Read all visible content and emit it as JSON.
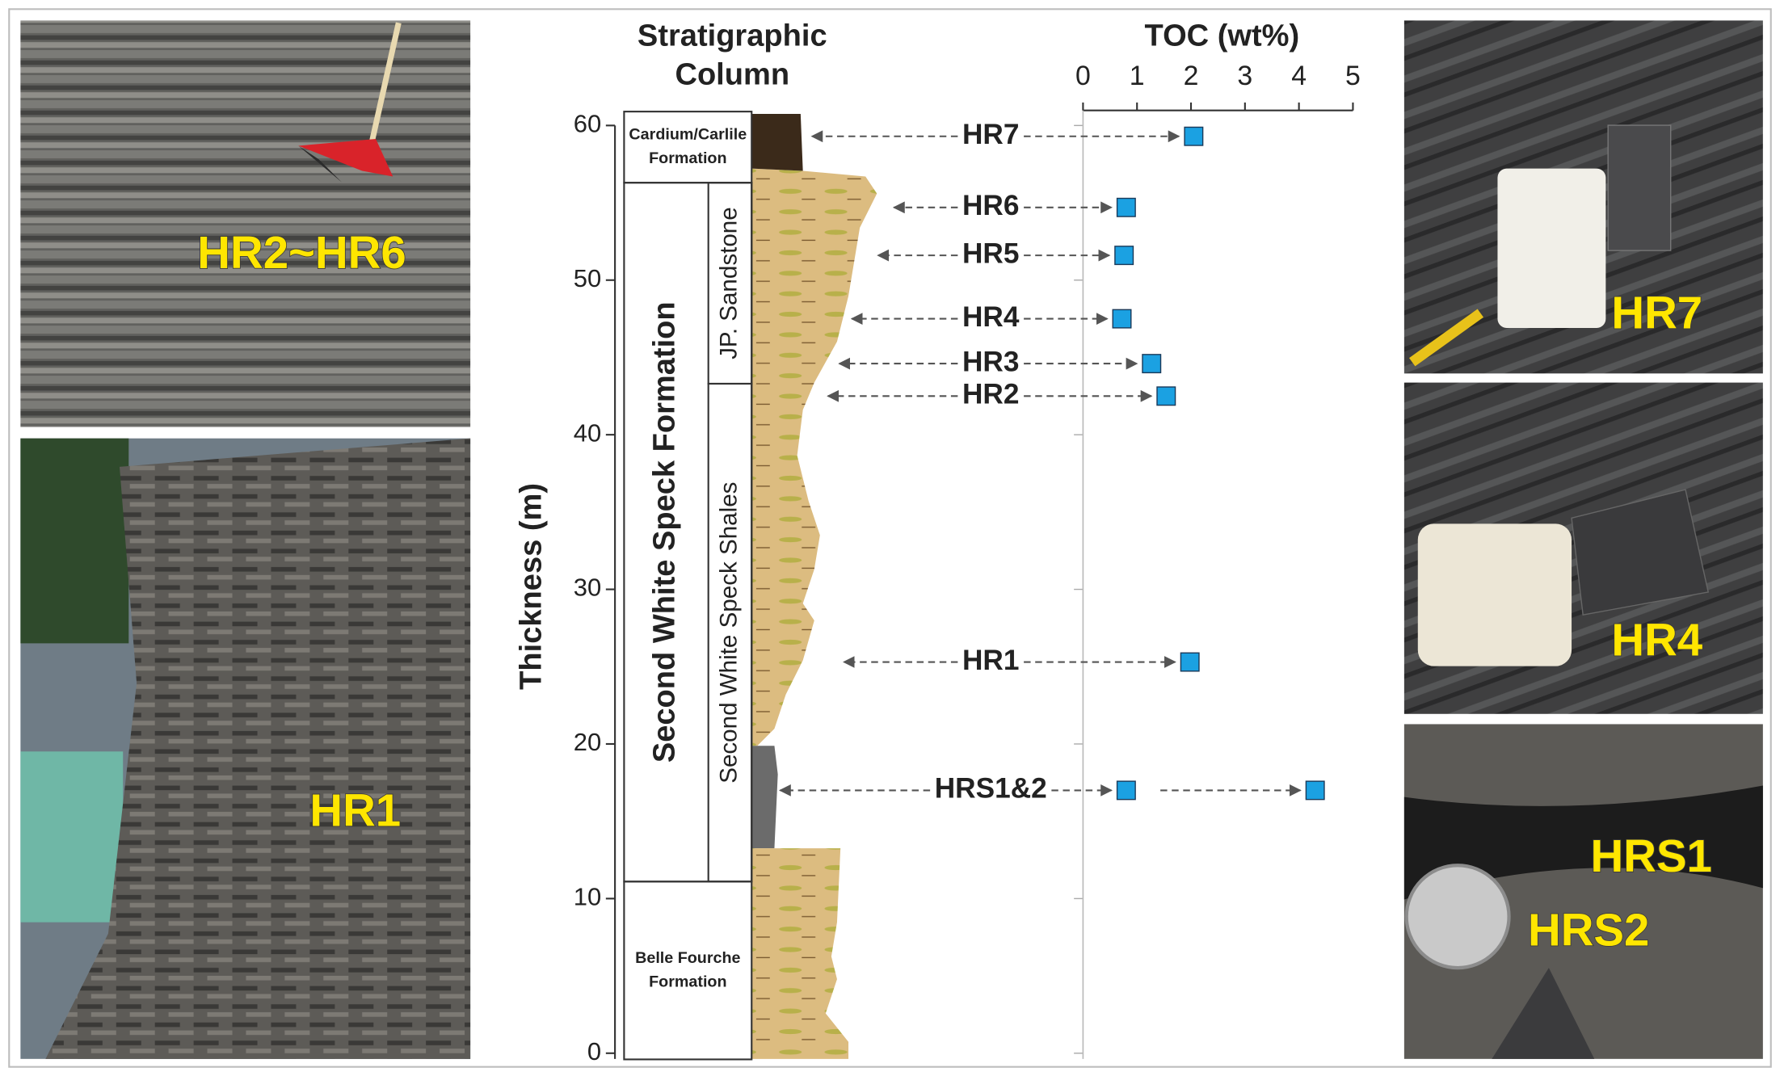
{
  "chart_data": {
    "type": "scatter",
    "title": [
      "Stratigraphic",
      "Column"
    ],
    "x_axis_title": "TOC (wt%)",
    "y_axis_title": "Thickness (m)",
    "xlim": [
      0,
      5
    ],
    "xticks": [
      0,
      1,
      2,
      3,
      4,
      5
    ],
    "ylim": [
      0,
      60
    ],
    "yticks": [
      0,
      10,
      20,
      30,
      40,
      50,
      60
    ],
    "color": "#1ba1e2",
    "samples": [
      {
        "label": "HR7",
        "thickness": 59.3,
        "toc": [
          2.05
        ]
      },
      {
        "label": "HR6",
        "thickness": 54.7,
        "toc": [
          0.8
        ]
      },
      {
        "label": "HR5",
        "thickness": 51.6,
        "toc": [
          0.76
        ]
      },
      {
        "label": "HR4",
        "thickness": 47.5,
        "toc": [
          0.72
        ]
      },
      {
        "label": "HR3",
        "thickness": 44.6,
        "toc": [
          1.27
        ]
      },
      {
        "label": "HR2",
        "thickness": 42.5,
        "toc": [
          1.54
        ]
      },
      {
        "label": "HR1",
        "thickness": 25.3,
        "toc": [
          1.98
        ]
      },
      {
        "label": "HRS1&2",
        "thickness": 17.0,
        "toc": [
          0.8,
          4.3
        ]
      }
    ],
    "units": [
      {
        "name": [
          "Cardium/Carlile",
          "Formation"
        ],
        "base": 56.3,
        "top": 60.9
      },
      {
        "name": [
          "Second White Speck Formation"
        ],
        "base": 11.1,
        "top": 56.3,
        "members": [
          {
            "name": "JP. Sandstone",
            "base": 43.3,
            "top": 56.3
          },
          {
            "name": "Second White Speck Shales",
            "base": 11.1,
            "top": 43.3
          }
        ]
      },
      {
        "name": [
          "Belle Fourche",
          "Formation"
        ],
        "base": -0.4,
        "top": 11.1
      }
    ]
  },
  "photo_labels": [
    "HR2~HR6",
    "HR1",
    "HR7",
    "HR4",
    "HRS1",
    "HRS2"
  ]
}
